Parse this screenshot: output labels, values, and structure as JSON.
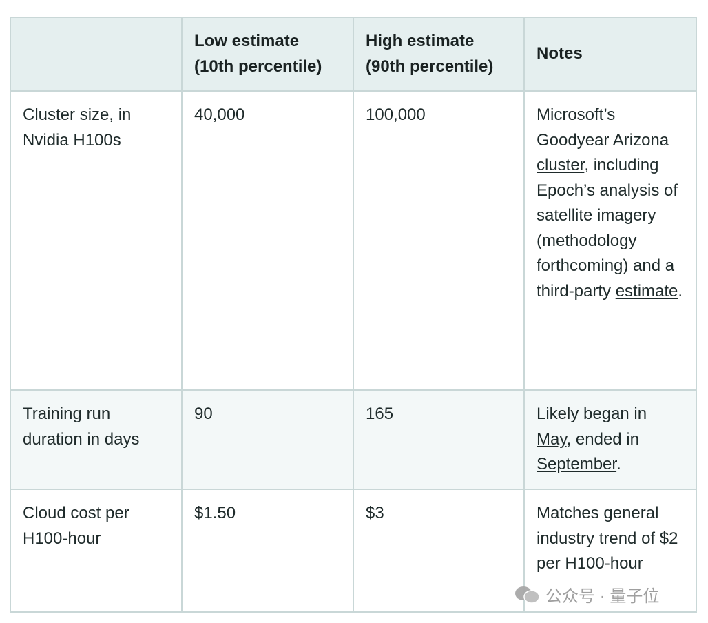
{
  "table": {
    "header": [
      "",
      "Low estimate (10th percentile)",
      "High estimate (90th percentile)",
      "Notes"
    ],
    "rows": [
      {
        "label": "Cluster size, in Nvidia H100s",
        "low": "40,000",
        "high": "100,000",
        "notes": [
          {
            "text": "Microsoft’s Goodyear Arizona ",
            "link": false
          },
          {
            "text": "cluster",
            "link": true
          },
          {
            "text": ", including Epoch’s analysis of satellite imagery (methodology forthcoming) and a third-party ",
            "link": false
          },
          {
            "text": "estimate",
            "link": true
          },
          {
            "text": ".",
            "link": false
          }
        ]
      },
      {
        "label": "Training run duration in days",
        "low": "90",
        "high": "165",
        "notes": [
          {
            "text": "Likely began in ",
            "link": false
          },
          {
            "text": "May",
            "link": true
          },
          {
            "text": ", ended in ",
            "link": false
          },
          {
            "text": "September",
            "link": true
          },
          {
            "text": ".",
            "link": false
          }
        ]
      },
      {
        "label": "Cloud cost per H100-hour",
        "low": "$1.50",
        "high": "$3",
        "notes": [
          {
            "text": "Matches general industry trend of $2 per H100-hour",
            "link": false
          }
        ]
      }
    ]
  },
  "watermark": "公众号 · 量子位"
}
